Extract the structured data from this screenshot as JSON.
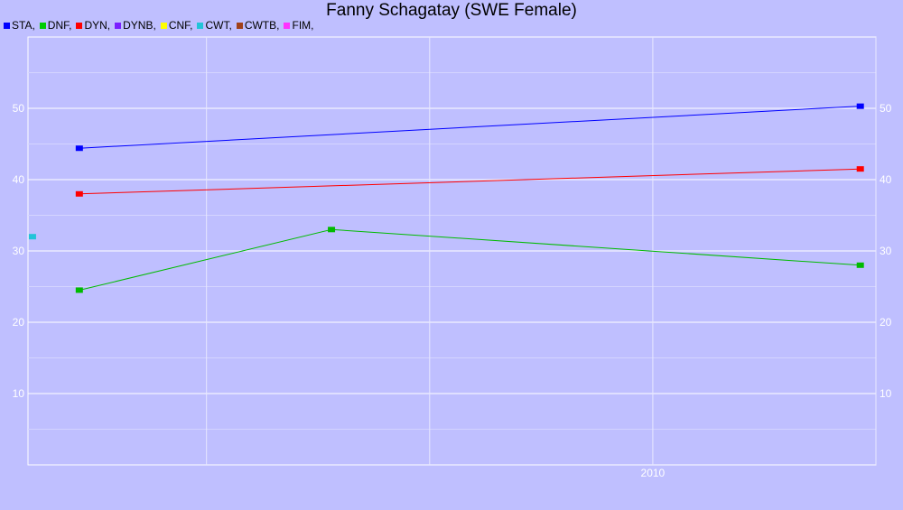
{
  "chart_data": {
    "type": "line",
    "title": "Fanny Schagatay (SWE Female)",
    "xlabel": "",
    "ylabel": "",
    "legend_position": "top-left",
    "grid": true,
    "x_range": [
      2007.2,
      2011.0
    ],
    "ylim": [
      0,
      60
    ],
    "x_tick_labels": [
      {
        "x": 2010,
        "label": "2010"
      }
    ],
    "y_ticks": [
      10,
      20,
      30,
      40,
      50
    ],
    "legend": [
      {
        "label": "STA,",
        "color": "#0000ff"
      },
      {
        "label": "DNF,",
        "color": "#00cc00"
      },
      {
        "label": "DYN,",
        "color": "#ff0000"
      },
      {
        "label": "DYNB,",
        "color": "#7a1fff"
      },
      {
        "label": "CNF,",
        "color": "#ffff00"
      },
      {
        "label": "CWT,",
        "color": "#22c4d8"
      },
      {
        "label": "CWTB,",
        "color": "#a0401a"
      },
      {
        "label": "FIM,",
        "color": "#ff33ff"
      }
    ],
    "series": [
      {
        "name": "STA",
        "color": "#0000ff",
        "points": [
          {
            "x": 2007.43,
            "y": 44.4
          },
          {
            "x": 2010.93,
            "y": 50.3
          }
        ]
      },
      {
        "name": "DNF",
        "color": "#00bb00",
        "points": [
          {
            "x": 2007.43,
            "y": 24.5
          },
          {
            "x": 2008.56,
            "y": 33.0
          },
          {
            "x": 2010.93,
            "y": 28.0
          }
        ]
      },
      {
        "name": "DYN",
        "color": "#ff0000",
        "points": [
          {
            "x": 2007.43,
            "y": 38.0
          },
          {
            "x": 2010.93,
            "y": 41.5
          }
        ]
      },
      {
        "name": "CWT",
        "color": "#22c4d8",
        "points": [
          {
            "x": 2007.22,
            "y": 32.0
          }
        ]
      }
    ]
  }
}
